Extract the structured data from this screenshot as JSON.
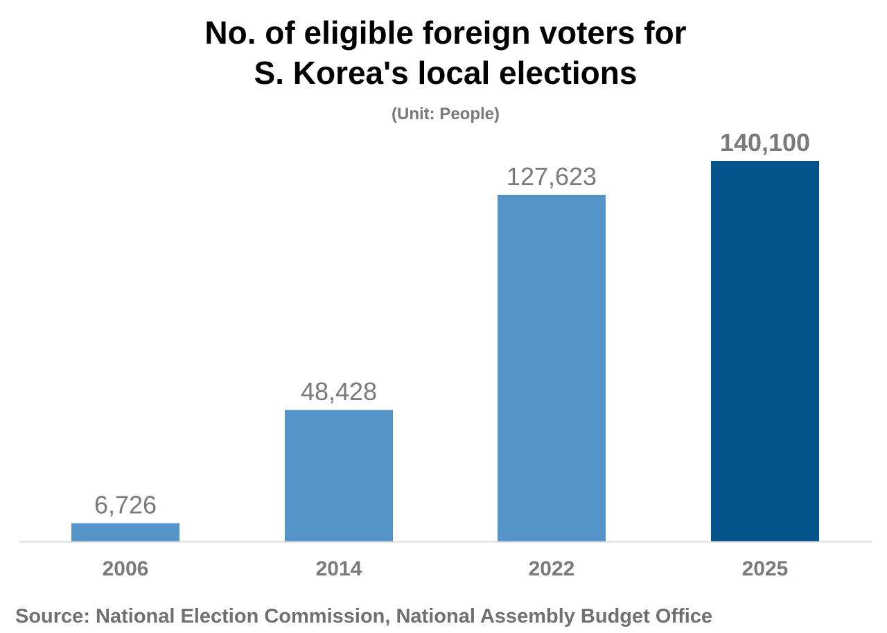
{
  "chart_data": {
    "type": "bar",
    "title_lines": [
      "No. of eligible foreign voters for",
      "S. Korea's local elections"
    ],
    "subtitle": "(Unit: People)",
    "categories": [
      "2006",
      "2014",
      "2022",
      "2025"
    ],
    "values": [
      6726,
      48428,
      127623,
      140100
    ],
    "data_labels": [
      "6,726",
      "48,428",
      "127,623",
      "140,100"
    ],
    "highlight_category": "2025",
    "colors": {
      "bar": "#5594c8",
      "highlight": "#04548c",
      "label": "#7a7a7a",
      "axis": "#d9d9d9"
    },
    "xlabel": "",
    "ylabel": "",
    "ylim": [
      0,
      140100
    ],
    "grid": false,
    "legend": "none",
    "source": "Source: National Election Commission, National Assembly Budget Office"
  }
}
